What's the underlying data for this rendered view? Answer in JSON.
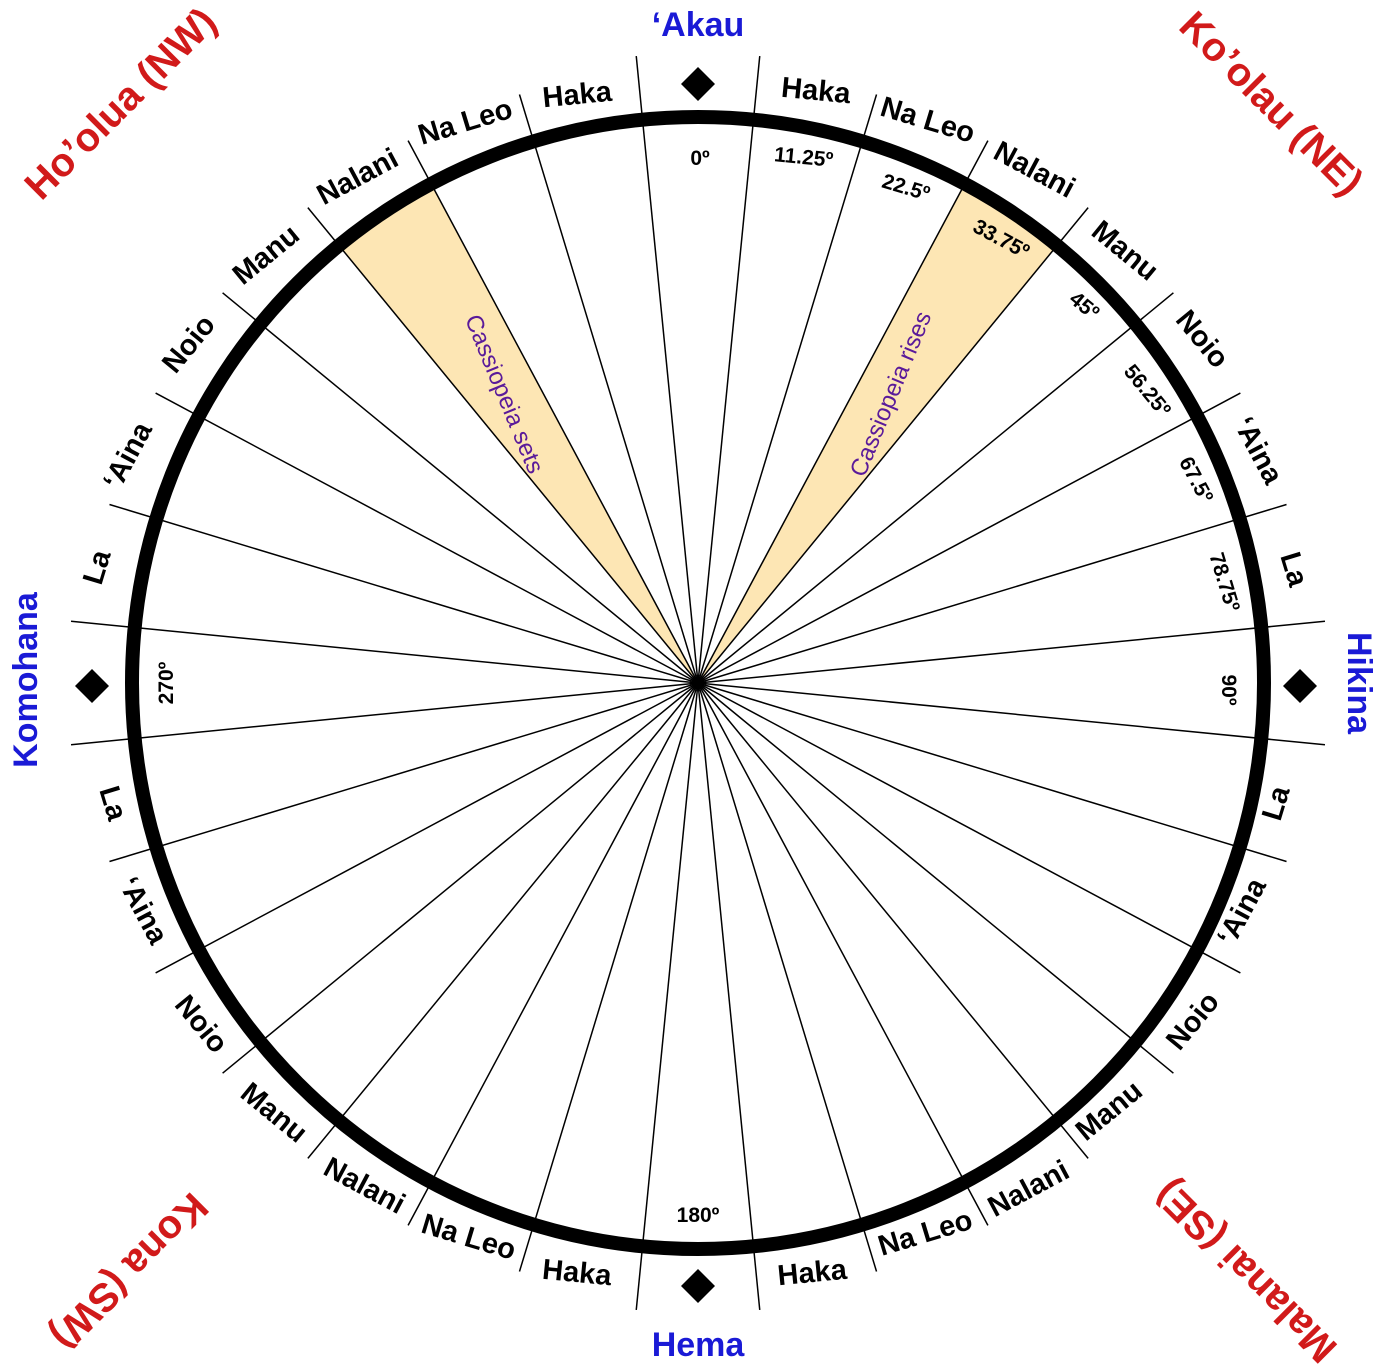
{
  "cardinals": [
    {
      "key": "north",
      "label": "‘Akau",
      "color": "#1a1ad6"
    },
    {
      "key": "east",
      "label": "Hikina",
      "color": "#1a1ad6"
    },
    {
      "key": "south",
      "label": "Hema",
      "color": "#1a1ad6"
    },
    {
      "key": "west",
      "label": "Komohana",
      "color": "#1a1ad6"
    }
  ],
  "quadrants": [
    {
      "key": "ne",
      "label": "Ko’olau (NE)",
      "color": "#d11a1a"
    },
    {
      "key": "nw",
      "label": "Ho’olua (NW)",
      "color": "#d11a1a"
    },
    {
      "key": "se",
      "label": "Malanai (SE)",
      "color": "#d11a1a"
    },
    {
      "key": "sw",
      "label": "Kona (SW)",
      "color": "#d11a1a"
    }
  ],
  "houses": [
    "Haka",
    "Na Leo",
    "Nalani",
    "Manu",
    "Noio",
    "‘Aina",
    "La"
  ],
  "degree_labels": [
    {
      "key": "d0",
      "label": "0º"
    },
    {
      "key": "d11",
      "label": "11.25º"
    },
    {
      "key": "d22",
      "label": "22.5º"
    },
    {
      "key": "d33",
      "label": "33.75º"
    },
    {
      "key": "d45",
      "label": "45º"
    },
    {
      "key": "d56",
      "label": "56.25º"
    },
    {
      "key": "d67",
      "label": "67.5º"
    },
    {
      "key": "d78",
      "label": "78.75º"
    },
    {
      "key": "d90",
      "label": "90º"
    },
    {
      "key": "d180",
      "label": "180º"
    },
    {
      "key": "d270",
      "label": "270º"
    }
  ],
  "highlights": [
    {
      "key": "rises",
      "label": "Cassiopeia rises"
    },
    {
      "key": "sets",
      "label": "Cassiopeia sets"
    }
  ],
  "colors": {
    "highlight_fill": "#fde6b4",
    "star_label": "#5a1a9a",
    "ring": "#000000",
    "line": "#000000"
  }
}
